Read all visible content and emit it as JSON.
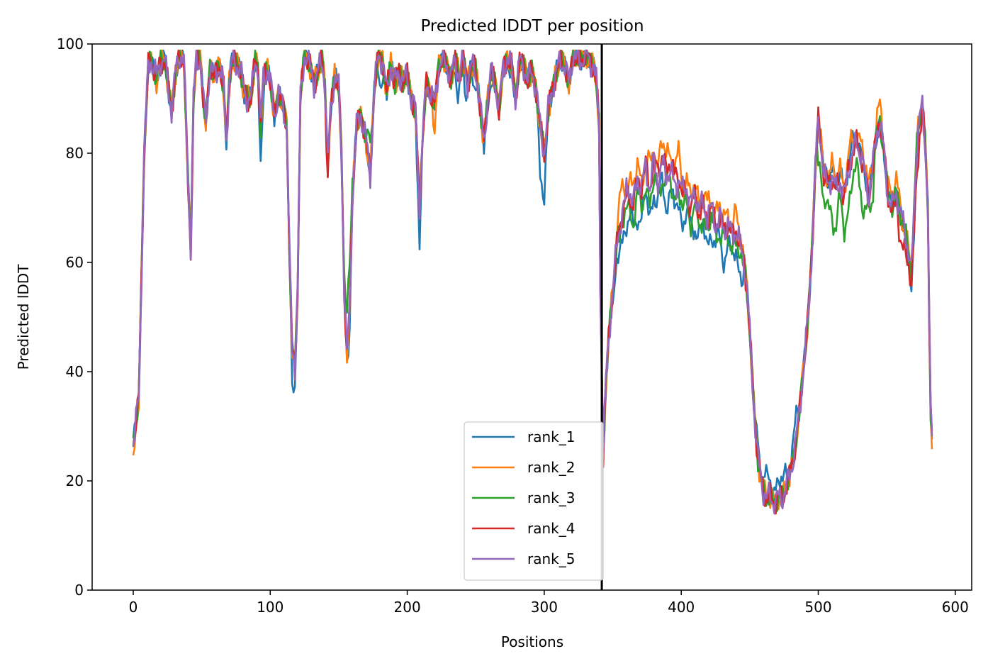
{
  "chart_data": {
    "type": "line",
    "title": "Predicted lDDT per position",
    "xlabel": "Positions",
    "ylabel": "Predicted lDDT",
    "xlim": [
      -30,
      612
    ],
    "ylim": [
      0,
      100
    ],
    "xticks": [
      0,
      100,
      200,
      300,
      400,
      500,
      600
    ],
    "yticks": [
      0,
      20,
      40,
      60,
      80,
      100
    ],
    "grid": false,
    "legend_position": "lower-center",
    "vline_x": 342,
    "anchors": [
      [
        0,
        27
      ],
      [
        4,
        35
      ],
      [
        8,
        80
      ],
      [
        11,
        96
      ],
      [
        13,
        97
      ],
      [
        17,
        94
      ],
      [
        20,
        97
      ],
      [
        23,
        97
      ],
      [
        26,
        91
      ],
      [
        28,
        88
      ],
      [
        31,
        95
      ],
      [
        34,
        98
      ],
      [
        37,
        97
      ],
      [
        40,
        75
      ],
      [
        42,
        63
      ],
      [
        44,
        90
      ],
      [
        46,
        97
      ],
      [
        49,
        97
      ],
      [
        51,
        90
      ],
      [
        53,
        86
      ],
      [
        56,
        96
      ],
      [
        59,
        94
      ],
      [
        63,
        96
      ],
      [
        66,
        92
      ],
      [
        68,
        82
      ],
      [
        70,
        93
      ],
      [
        72,
        97
      ],
      [
        75,
        96
      ],
      [
        78,
        96
      ],
      [
        81,
        91
      ],
      [
        84,
        90
      ],
      [
        86,
        90
      ],
      [
        89,
        97
      ],
      [
        91,
        96
      ],
      [
        93,
        85
      ],
      [
        95,
        94
      ],
      [
        98,
        95
      ],
      [
        100,
        93
      ],
      [
        103,
        87
      ],
      [
        106,
        91
      ],
      [
        109,
        89
      ],
      [
        112,
        85
      ],
      [
        114,
        62
      ],
      [
        116,
        44
      ],
      [
        118,
        41
      ],
      [
        120,
        55
      ],
      [
        122,
        90
      ],
      [
        125,
        98
      ],
      [
        128,
        97
      ],
      [
        132,
        93
      ],
      [
        135,
        95
      ],
      [
        138,
        97
      ],
      [
        140,
        92
      ],
      [
        142,
        78
      ],
      [
        144,
        88
      ],
      [
        147,
        94
      ],
      [
        150,
        92
      ],
      [
        152,
        80
      ],
      [
        154,
        55
      ],
      [
        156,
        43
      ],
      [
        158,
        52
      ],
      [
        160,
        72
      ],
      [
        163,
        85
      ],
      [
        166,
        87
      ],
      [
        169,
        84
      ],
      [
        171,
        80
      ],
      [
        173,
        76
      ],
      [
        176,
        92
      ],
      [
        179,
        98
      ],
      [
        182,
        97
      ],
      [
        185,
        91
      ],
      [
        188,
        96
      ],
      [
        191,
        93
      ],
      [
        194,
        95
      ],
      [
        197,
        93
      ],
      [
        200,
        94
      ],
      [
        203,
        90
      ],
      [
        206,
        88
      ],
      [
        209,
        70
      ],
      [
        211,
        82
      ],
      [
        214,
        93
      ],
      [
        217,
        91
      ],
      [
        220,
        89
      ],
      [
        223,
        96
      ],
      [
        226,
        97
      ],
      [
        229,
        96
      ],
      [
        232,
        94
      ],
      [
        235,
        97
      ],
      [
        238,
        94
      ],
      [
        241,
        97
      ],
      [
        244,
        93
      ],
      [
        247,
        96
      ],
      [
        250,
        95
      ],
      [
        253,
        89
      ],
      [
        256,
        82
      ],
      [
        258,
        88
      ],
      [
        261,
        95
      ],
      [
        264,
        93
      ],
      [
        267,
        88
      ],
      [
        270,
        96
      ],
      [
        273,
        97
      ],
      [
        276,
        96
      ],
      [
        279,
        90
      ],
      [
        282,
        97
      ],
      [
        285,
        96
      ],
      [
        288,
        93
      ],
      [
        291,
        95
      ],
      [
        294,
        92
      ],
      [
        297,
        85
      ],
      [
        300,
        80
      ],
      [
        303,
        88
      ],
      [
        306,
        92
      ],
      [
        309,
        95
      ],
      [
        312,
        97
      ],
      [
        315,
        96
      ],
      [
        318,
        93
      ],
      [
        321,
        98
      ],
      [
        324,
        97
      ],
      [
        327,
        97
      ],
      [
        330,
        98
      ],
      [
        333,
        97
      ],
      [
        336,
        96
      ],
      [
        338,
        93
      ],
      [
        340,
        85
      ],
      [
        341,
        55
      ],
      [
        343,
        25
      ],
      [
        345,
        38
      ],
      [
        347,
        46
      ],
      [
        350,
        55
      ],
      [
        353,
        63
      ],
      [
        356,
        68
      ],
      [
        359,
        71
      ],
      [
        362,
        72
      ],
      [
        365,
        70
      ],
      [
        368,
        74
      ],
      [
        371,
        72
      ],
      [
        374,
        76
      ],
      [
        377,
        73
      ],
      [
        380,
        77
      ],
      [
        383,
        75
      ],
      [
        386,
        78
      ],
      [
        389,
        76
      ],
      [
        392,
        77
      ],
      [
        395,
        74
      ],
      [
        398,
        75
      ],
      [
        401,
        72
      ],
      [
        404,
        73
      ],
      [
        407,
        70
      ],
      [
        410,
        72
      ],
      [
        413,
        69
      ],
      [
        416,
        70
      ],
      [
        419,
        68
      ],
      [
        422,
        70
      ],
      [
        425,
        67
      ],
      [
        428,
        68
      ],
      [
        431,
        66
      ],
      [
        434,
        67
      ],
      [
        437,
        65
      ],
      [
        440,
        66
      ],
      [
        443,
        63
      ],
      [
        446,
        60
      ],
      [
        448,
        55
      ],
      [
        450,
        47
      ],
      [
        452,
        38
      ],
      [
        454,
        30
      ],
      [
        456,
        24
      ],
      [
        459,
        19
      ],
      [
        462,
        17
      ],
      [
        465,
        17
      ],
      [
        468,
        16
      ],
      [
        471,
        17
      ],
      [
        474,
        17
      ],
      [
        477,
        19
      ],
      [
        480,
        22
      ],
      [
        483,
        26
      ],
      [
        486,
        32
      ],
      [
        489,
        40
      ],
      [
        492,
        48
      ],
      [
        494,
        56
      ],
      [
        496,
        66
      ],
      [
        498,
        78
      ],
      [
        500,
        86
      ],
      [
        502,
        82
      ],
      [
        504,
        76
      ],
      [
        507,
        74
      ],
      [
        510,
        76
      ],
      [
        513,
        73
      ],
      [
        516,
        75
      ],
      [
        519,
        72
      ],
      [
        522,
        77
      ],
      [
        525,
        80
      ],
      [
        528,
        82
      ],
      [
        531,
        80
      ],
      [
        534,
        76
      ],
      [
        537,
        72
      ],
      [
        540,
        78
      ],
      [
        543,
        84
      ],
      [
        545,
        86
      ],
      [
        548,
        80
      ],
      [
        551,
        72
      ],
      [
        554,
        70
      ],
      [
        557,
        73
      ],
      [
        560,
        69
      ],
      [
        563,
        66
      ],
      [
        566,
        62
      ],
      [
        568,
        58
      ],
      [
        570,
        70
      ],
      [
        572,
        82
      ],
      [
        574,
        87
      ],
      [
        576,
        88
      ],
      [
        578,
        82
      ],
      [
        580,
        70
      ],
      [
        581,
        50
      ],
      [
        582,
        33
      ],
      [
        583,
        28
      ]
    ],
    "series": [
      {
        "name": "rank_1",
        "color": "#1f77b4",
        "phase": 0.3,
        "amp": 1.2,
        "dips": [
          [
            93,
            -8
          ],
          [
            116,
            -4
          ],
          [
            118,
            -3
          ],
          [
            157,
            -4
          ],
          [
            181,
            -6
          ],
          [
            209,
            -7
          ],
          [
            237,
            -5
          ],
          [
            243,
            -4
          ],
          [
            249,
            -3
          ],
          [
            260,
            -4
          ],
          [
            274,
            -3
          ],
          [
            297,
            -8
          ],
          [
            300,
            -9
          ]
        ],
        "regions": [
          [
            350,
            445,
            -6
          ],
          [
            455,
            485,
            4
          ],
          [
            505,
            530,
            2
          ],
          [
            565,
            575,
            -4
          ]
        ]
      },
      {
        "name": "rank_2",
        "color": "#ff7f0e",
        "phase": 1.7,
        "amp": 1.4,
        "dips": [
          [
            0,
            -4
          ],
          [
            15,
            -2
          ],
          [
            220,
            -4
          ]
        ],
        "regions": [
          [
            353,
            400,
            5
          ],
          [
            401,
            445,
            3
          ],
          [
            505,
            560,
            3
          ]
        ]
      },
      {
        "name": "rank_3",
        "color": "#2ca02c",
        "phase": 2.9,
        "amp": 1.3,
        "dips": [
          [
            156,
            8
          ],
          [
            158,
            5
          ],
          [
            172,
            6
          ]
        ],
        "regions": [
          [
            355,
            445,
            -3
          ],
          [
            500,
            540,
            -8
          ]
        ]
      },
      {
        "name": "rank_4",
        "color": "#d62728",
        "phase": 4.1,
        "amp": 1.5,
        "dips": [
          [
            142,
            -3
          ],
          [
            41,
            -2
          ]
        ],
        "regions": [
          [
            365,
            400,
            2
          ],
          [
            555,
            575,
            -5
          ]
        ]
      },
      {
        "name": "rank_5",
        "color": "#9467bd",
        "phase": 5.3,
        "amp": 1.6,
        "dips": [],
        "regions": [
          [
            360,
            380,
            2
          ],
          [
            398,
            420,
            1
          ]
        ]
      }
    ]
  }
}
